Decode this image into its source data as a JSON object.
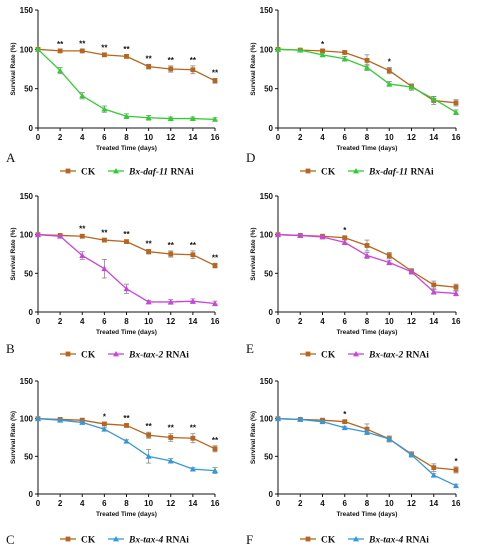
{
  "chart_data": [
    {
      "panel": "A",
      "type": "line",
      "xlabel": "Treated Time (days)",
      "ylabel": "Survival Rate (%)",
      "xlim": [
        0,
        16
      ],
      "ylim": [
        0,
        150
      ],
      "x_ticks": [
        "0",
        "2",
        "4",
        "6",
        "8",
        "10",
        "12",
        "14",
        "16"
      ],
      "y_ticks": [
        "0",
        "50",
        "100",
        "150"
      ],
      "x": [
        0,
        2,
        4,
        6,
        8,
        10,
        12,
        14,
        16
      ],
      "series": [
        {
          "name": "CK",
          "color": "#b8651f",
          "marker": "square",
          "values": [
            100,
            98,
            98,
            93,
            91,
            78,
            75,
            74,
            60
          ],
          "errors": [
            1,
            1,
            1.5,
            2,
            2,
            3,
            4,
            5,
            3
          ]
        },
        {
          "name_prefix": "Bx-daf-11",
          "name_suffix": " RNAi",
          "color": "#33cc33",
          "marker": "triangle",
          "values": [
            100,
            73,
            41,
            24,
            15,
            13,
            12,
            12,
            11
          ],
          "errors": [
            1,
            4,
            4,
            4,
            3,
            3,
            2,
            2,
            2
          ]
        }
      ],
      "significance": [
        {
          "x": 2,
          "label": "**"
        },
        {
          "x": 4,
          "label": "**"
        },
        {
          "x": 6,
          "label": "**"
        },
        {
          "x": 8,
          "label": "**"
        },
        {
          "x": 10,
          "label": "**"
        },
        {
          "x": 12,
          "label": "**"
        },
        {
          "x": 14,
          "label": "**"
        },
        {
          "x": 16,
          "label": "**"
        }
      ]
    },
    {
      "panel": "D",
      "type": "line",
      "xlabel": "Treated Time (days)",
      "ylabel": "Survival Rate (%)",
      "xlim": [
        0,
        16
      ],
      "ylim": [
        0,
        150
      ],
      "x_ticks": [
        "0",
        "2",
        "4",
        "6",
        "8",
        "10",
        "12",
        "14",
        "16"
      ],
      "y_ticks": [
        "0",
        "50",
        "100",
        "150"
      ],
      "x": [
        0,
        2,
        4,
        6,
        8,
        10,
        12,
        14,
        16
      ],
      "series": [
        {
          "name": "CK",
          "color": "#b8651f",
          "marker": "square",
          "values": [
            100,
            99,
            98,
            96,
            86,
            73,
            53,
            35,
            32
          ],
          "errors": [
            1,
            1,
            1,
            2,
            7,
            4,
            3,
            5,
            4
          ]
        },
        {
          "name_prefix": "Bx-daf-11",
          "name_suffix": " RNAi",
          "color": "#33cc33",
          "marker": "triangle",
          "values": [
            100,
            99,
            93,
            88,
            77,
            56,
            52,
            37,
            20
          ],
          "errors": [
            1,
            1,
            2,
            3,
            4,
            3,
            4,
            3,
            3
          ]
        }
      ],
      "significance": [
        {
          "x": 4,
          "label": "*"
        },
        {
          "x": 10,
          "label": "*"
        }
      ]
    },
    {
      "panel": "B",
      "type": "line",
      "xlabel": "Treated Time (days)",
      "ylabel": "Survival Rate (%)",
      "xlim": [
        0,
        16
      ],
      "ylim": [
        0,
        150
      ],
      "x_ticks": [
        "0",
        "2",
        "4",
        "6",
        "8",
        "10",
        "12",
        "14",
        "16"
      ],
      "y_ticks": [
        "0",
        "50",
        "100",
        "150"
      ],
      "x": [
        0,
        2,
        4,
        6,
        8,
        10,
        12,
        14,
        16
      ],
      "series": [
        {
          "name": "CK",
          "color": "#b8651f",
          "marker": "square",
          "values": [
            100,
            99,
            98,
            93,
            91,
            78,
            75,
            74,
            60
          ],
          "errors": [
            1,
            1,
            2,
            2,
            2,
            3,
            4,
            5,
            3
          ]
        },
        {
          "name_prefix": "Bx-tax-2",
          "name_suffix": " RNAi",
          "color": "#cc44dd",
          "marker": "triangle",
          "values": [
            100,
            98,
            73,
            56,
            30,
            13,
            13,
            14,
            11
          ],
          "errors": [
            1,
            1,
            5,
            12,
            6,
            2,
            3,
            3,
            3
          ]
        }
      ],
      "significance": [
        {
          "x": 4,
          "label": "**"
        },
        {
          "x": 6,
          "label": "**"
        },
        {
          "x": 8,
          "label": "**"
        },
        {
          "x": 10,
          "label": "**"
        },
        {
          "x": 12,
          "label": "**"
        },
        {
          "x": 14,
          "label": "**"
        },
        {
          "x": 16,
          "label": "**"
        }
      ]
    },
    {
      "panel": "E",
      "type": "line",
      "xlabel": "Treated Time (days)",
      "ylabel": "Survival Rate (%)",
      "xlim": [
        0,
        16
      ],
      "ylim": [
        0,
        150
      ],
      "x_ticks": [
        "0",
        "2",
        "4",
        "6",
        "8",
        "10",
        "12",
        "14",
        "16"
      ],
      "y_ticks": [
        "0",
        "50",
        "100",
        "150"
      ],
      "x": [
        0,
        2,
        4,
        6,
        8,
        10,
        12,
        14,
        16
      ],
      "series": [
        {
          "name": "CK",
          "color": "#b8651f",
          "marker": "square",
          "values": [
            100,
            99,
            98,
            96,
            86,
            73,
            53,
            35,
            32
          ],
          "errors": [
            1,
            1,
            1,
            2,
            7,
            4,
            3,
            5,
            4
          ]
        },
        {
          "name_prefix": "Bx-tax-2",
          "name_suffix": " RNAi",
          "color": "#cc44dd",
          "marker": "triangle",
          "values": [
            100,
            99,
            97,
            90,
            73,
            64,
            52,
            26,
            24
          ],
          "errors": [
            1,
            1,
            2,
            3,
            4,
            3,
            3,
            3,
            3
          ]
        }
      ],
      "significance": [
        {
          "x": 6,
          "label": "*"
        }
      ]
    },
    {
      "panel": "C",
      "type": "line",
      "xlabel": "Treated Time (days)",
      "ylabel": "Survival Rate (%)",
      "xlim": [
        0,
        16
      ],
      "ylim": [
        0,
        150
      ],
      "x_ticks": [
        "0",
        "2",
        "4",
        "6",
        "8",
        "10",
        "12",
        "14",
        "16"
      ],
      "y_ticks": [
        "0",
        "50",
        "100",
        "150"
      ],
      "x": [
        0,
        2,
        4,
        6,
        8,
        10,
        12,
        14,
        16
      ],
      "series": [
        {
          "name": "CK",
          "color": "#b8651f",
          "marker": "square",
          "values": [
            100,
            99,
            98,
            93,
            91,
            78,
            75,
            74,
            60
          ],
          "errors": [
            1,
            1,
            2,
            2,
            2,
            4,
            5,
            6,
            4
          ]
        },
        {
          "name_prefix": "Bx-tax-4",
          "name_suffix": " RNAi",
          "color": "#3399dd",
          "marker": "triangle",
          "values": [
            100,
            98,
            95,
            86,
            70,
            50,
            44,
            33,
            31
          ],
          "errors": [
            1,
            1,
            2,
            2,
            2,
            9,
            3,
            2,
            4
          ]
        }
      ],
      "significance": [
        {
          "x": 6,
          "label": "*"
        },
        {
          "x": 8,
          "label": "**"
        },
        {
          "x": 10,
          "label": "**"
        },
        {
          "x": 12,
          "label": "**"
        },
        {
          "x": 14,
          "label": "**"
        },
        {
          "x": 16,
          "label": "**"
        }
      ]
    },
    {
      "panel": "F",
      "type": "line",
      "xlabel": "Treated Time (days)",
      "ylabel": "Survival Rate (%)",
      "xlim": [
        0,
        16
      ],
      "ylim": [
        0,
        150
      ],
      "x_ticks": [
        "0",
        "2",
        "4",
        "6",
        "8",
        "10",
        "12",
        "14",
        "16"
      ],
      "y_ticks": [
        "0",
        "50",
        "100",
        "150"
      ],
      "x": [
        0,
        2,
        4,
        6,
        8,
        10,
        12,
        14,
        16
      ],
      "series": [
        {
          "name": "CK",
          "color": "#b8651f",
          "marker": "square",
          "values": [
            100,
            99,
            98,
            96,
            86,
            73,
            53,
            35,
            32
          ],
          "errors": [
            1,
            1,
            1,
            2,
            7,
            4,
            3,
            5,
            4
          ]
        },
        {
          "name_prefix": "Bx-tax-4",
          "name_suffix": " RNAi",
          "color": "#3399dd",
          "marker": "triangle",
          "values": [
            100,
            99,
            96,
            88,
            82,
            73,
            52,
            25,
            11
          ],
          "errors": [
            1,
            1,
            1,
            2,
            3,
            3,
            3,
            2,
            2
          ]
        }
      ],
      "significance": [
        {
          "x": 6,
          "label": "*"
        },
        {
          "x": 16,
          "label": "*"
        }
      ]
    }
  ]
}
